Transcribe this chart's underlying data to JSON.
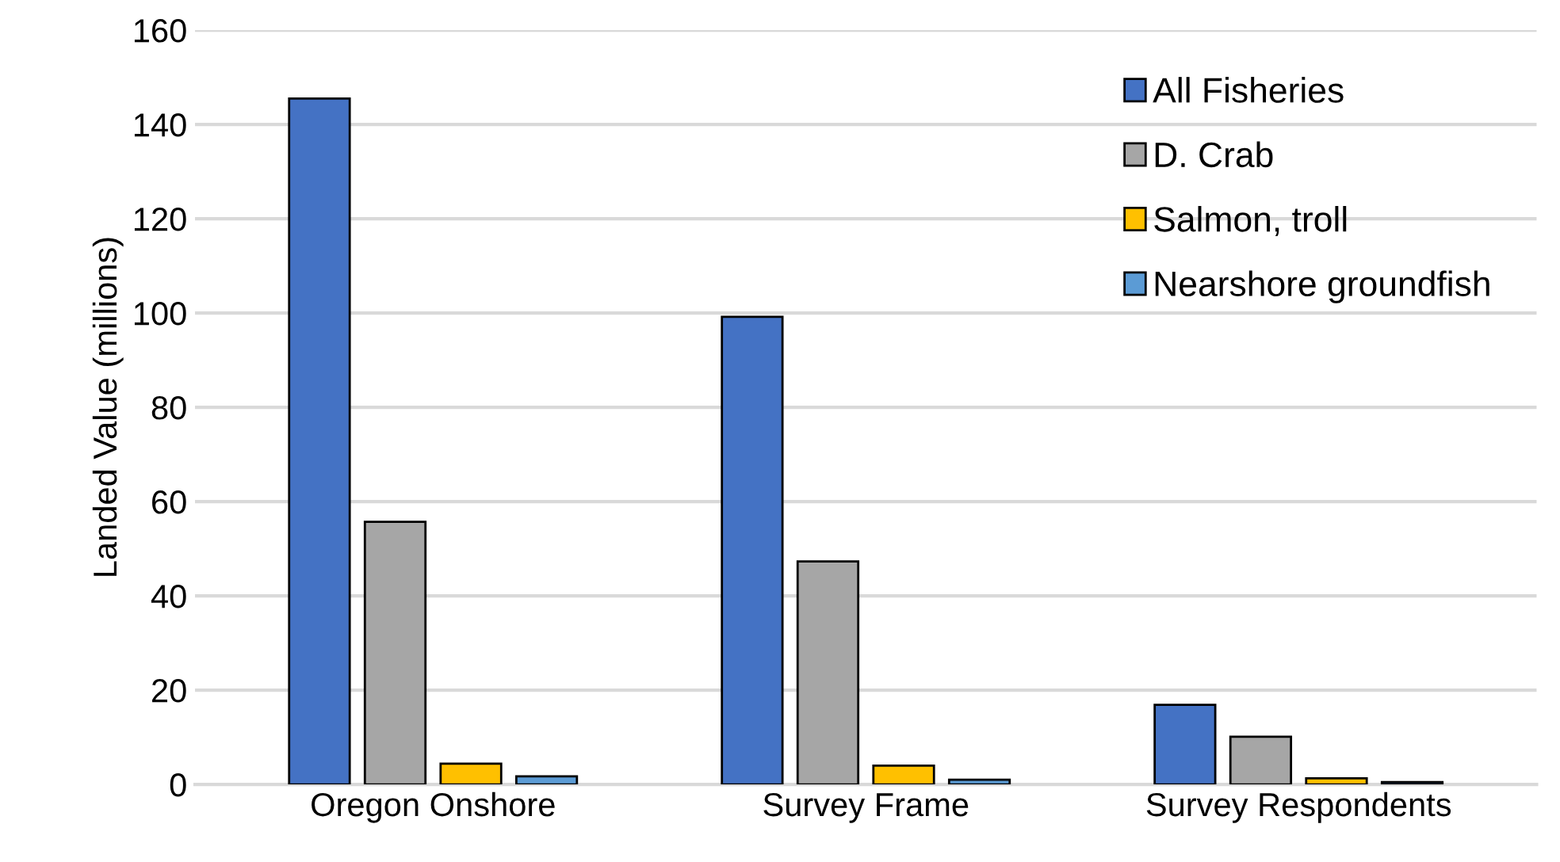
{
  "chart_data": {
    "type": "bar",
    "ylabel": "Landed Value (millions)",
    "categories": [
      "Oregon Onshore",
      "Survey Frame",
      "Survey Respondents"
    ],
    "series": [
      {
        "name": "All Fisheries",
        "color": "#4472c4",
        "values": [
          145.5,
          99.2,
          16.9
        ]
      },
      {
        "name": "D. Crab",
        "color": "#a6a6a6",
        "values": [
          55.7,
          47.3,
          10.1
        ]
      },
      {
        "name": "Salmon, troll",
        "color": "#ffc000",
        "values": [
          4.4,
          4.0,
          1.3
        ]
      },
      {
        "name": "Nearshore groundfish",
        "color": "#5b9bd5",
        "values": [
          1.7,
          1.0,
          0.5
        ]
      }
    ],
    "ylim": [
      0,
      160
    ],
    "yticks": [
      0,
      20,
      40,
      60,
      80,
      100,
      120,
      140,
      160
    ],
    "grid": "y",
    "legend": "top right"
  }
}
